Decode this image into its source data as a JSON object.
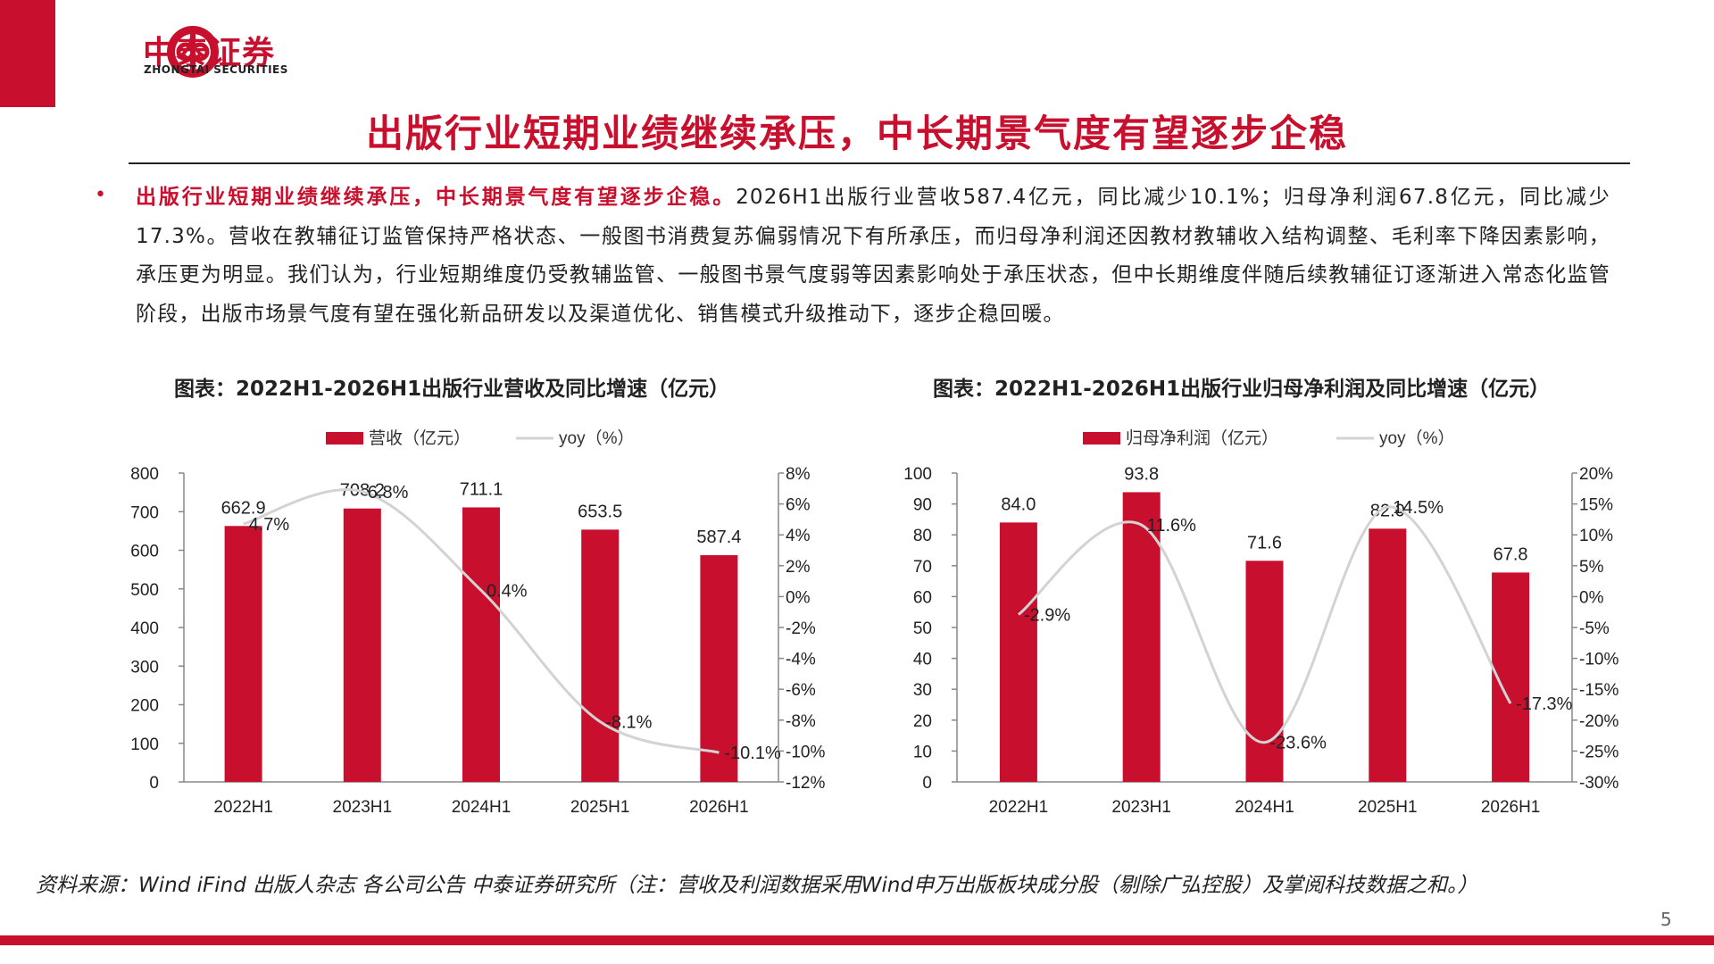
{
  "brand": {
    "name_cn": "中泰证券",
    "name_en": "ZHONGTAI SECURITIES",
    "color": "#c8102e"
  },
  "header": {
    "title": "出版行业短期业绩继续承压，中长期景气度有望逐步企稳"
  },
  "summary": {
    "lead": "出版行业短期业绩继续承压，中长期景气度有望逐步企稳。",
    "body": "2026H1出版行业营收587.4亿元，同比减少10.1%；归母净利润67.8亿元，同比减少17.3%。营收在教辅征订监管保持严格状态、一般图书消费复苏偏弱情况下有所承压，而归母净利润还因教材教辅收入结构调整、毛利率下降因素影响，承压更为明显。我们认为，行业短期维度仍受教辅监管、一般图书景气度弱等因素影响处于承压状态，但中长期维度伴随后续教辅征订逐渐进入常态化监管阶段，出版市场景气度有望在强化新品研发以及渠道优化、销售模式升级推动下，逐步企稳回暖。"
  },
  "chart_data": [
    {
      "type": "bar",
      "title": "图表：2022H1-2026H1出版行业营收及同比增速（亿元）",
      "categories": [
        "2022H1",
        "2023H1",
        "2024H1",
        "2025H1",
        "2026H1"
      ],
      "series": [
        {
          "name": "营收（亿元）",
          "type": "bar",
          "axis": "left",
          "color": "#c8102e",
          "values": [
            662.9,
            708.2,
            711.1,
            653.5,
            587.4
          ],
          "labels": [
            "662.9",
            "708.2",
            "711.1",
            "653.5",
            "587.4"
          ]
        },
        {
          "name": "yoy（%）",
          "type": "line",
          "smooth": true,
          "axis": "right",
          "color": "#d3d3d3",
          "values": [
            4.7,
            6.8,
            0.4,
            -8.1,
            -10.1
          ],
          "labels": [
            "4.7%",
            "6.8%",
            "0.4%",
            "-8.1%",
            "-10.1%"
          ]
        }
      ],
      "ylim": [
        0,
        800
      ],
      "yticks": [
        "0",
        "100",
        "200",
        "300",
        "400",
        "500",
        "600",
        "700",
        "800"
      ],
      "y2lim": [
        -12,
        8
      ],
      "y2ticks": [
        "-12%",
        "-10%",
        "-8%",
        "-6%",
        "-4%",
        "-2%",
        "0%",
        "2%",
        "4%",
        "6%",
        "8%"
      ],
      "legend": "top",
      "grid": false
    },
    {
      "type": "bar",
      "title": "图表：2022H1-2026H1出版行业归母净利润及同比增速（亿元）",
      "categories": [
        "2022H1",
        "2023H1",
        "2024H1",
        "2025H1",
        "2026H1"
      ],
      "series": [
        {
          "name": "归母净利润（亿元）",
          "type": "bar",
          "axis": "left",
          "color": "#c8102e",
          "values": [
            84.0,
            93.8,
            71.6,
            82.0,
            67.8
          ],
          "labels": [
            "84.0",
            "93.8",
            "71.6",
            "82.0",
            "67.8"
          ]
        },
        {
          "name": "yoy（%）",
          "type": "line",
          "smooth": true,
          "axis": "right",
          "color": "#d3d3d3",
          "values": [
            -2.9,
            11.6,
            -23.6,
            14.5,
            -17.3
          ],
          "labels": [
            "-2.9%",
            "11.6%",
            "-23.6%",
            "14.5%",
            "-17.3%"
          ]
        }
      ],
      "ylim": [
        0,
        100
      ],
      "yticks": [
        "0",
        "10",
        "20",
        "30",
        "40",
        "50",
        "60",
        "70",
        "80",
        "90",
        "100"
      ],
      "y2lim": [
        -30,
        20
      ],
      "y2ticks": [
        "-30%",
        "-25%",
        "-20%",
        "-15%",
        "-10%",
        "-5%",
        "0%",
        "5%",
        "10%",
        "15%",
        "20%"
      ],
      "legend": "top",
      "grid": false
    }
  ],
  "footer": {
    "source": "资料来源：Wind iFind 出版人杂志 各公司公告 中泰证券研究所（注：营收及利润数据采用Wind申万出版板块成分股（剔除广弘控股）及掌阅科技数据之和。）",
    "page": "5"
  }
}
